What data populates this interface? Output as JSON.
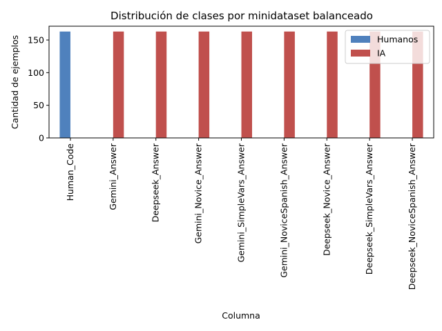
{
  "chart_data": {
    "type": "bar",
    "title": "Distribución de clases por minidataset balanceado",
    "xlabel": "Columna",
    "ylabel": "Cantidad de ejemplos",
    "categories": [
      "Human_Code",
      "Gemini_Answer",
      "Deepseek_Answer",
      "Gemini_Novice_Answer",
      "Gemini_SimpleVars_Answer",
      "Gemini_NoviceSpanish_Answer",
      "Deepseek_Novice_Answer",
      "Deepseek_SimpleVars_Answer",
      "Deepseek_NoviceSpanish_Answer"
    ],
    "series": [
      {
        "name": "Humanos",
        "color": "#4f81bd",
        "values": [
          163,
          0,
          0,
          0,
          0,
          0,
          0,
          0,
          0
        ]
      },
      {
        "name": "IA",
        "color": "#c0504d",
        "values": [
          0,
          163,
          163,
          163,
          163,
          163,
          163,
          163,
          163
        ]
      }
    ],
    "ylim": [
      0,
      171.15
    ],
    "yticks": [
      0,
      50,
      100,
      150
    ],
    "legend": "top-right",
    "grid": false
  }
}
